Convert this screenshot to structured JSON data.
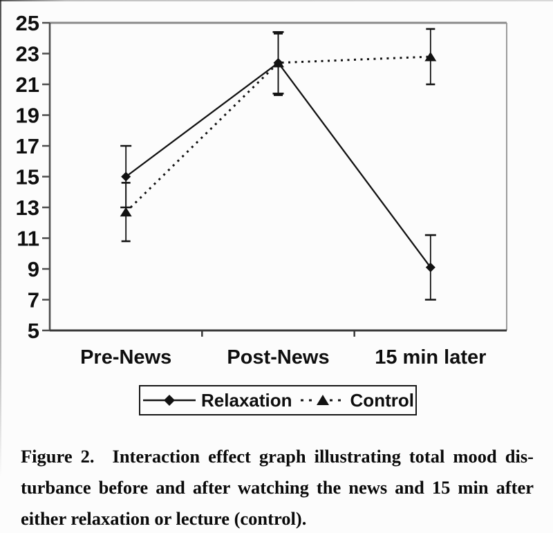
{
  "chart_data": {
    "type": "line",
    "title": "",
    "xlabel": "",
    "ylabel": "",
    "categories": [
      "Pre-News",
      "Post-News",
      "15 min later"
    ],
    "series": [
      {
        "name": "Relaxation",
        "marker": "diamond",
        "line_style": "solid",
        "values": [
          15.0,
          22.4,
          9.1
        ],
        "error_low": [
          13.0,
          20.4,
          7.0
        ],
        "error_high": [
          17.0,
          24.4,
          11.2
        ]
      },
      {
        "name": "Control",
        "marker": "triangle",
        "line_style": "dashed",
        "values": [
          12.7,
          22.4,
          22.8
        ],
        "error_low": [
          10.8,
          20.3,
          21.0
        ],
        "error_high": [
          14.6,
          24.3,
          24.6
        ]
      }
    ],
    "ylim": [
      5,
      25
    ],
    "yticks": [
      5,
      7,
      9,
      11,
      13,
      15,
      17,
      19,
      21,
      23,
      25
    ],
    "grid": false,
    "legend_position": "bottom",
    "color": "#121212"
  },
  "icons": {
    "relaxation_marker_glyph": "♦",
    "control_marker_glyph": "▲"
  },
  "caption": {
    "figure_label": "Figure 2.",
    "lines": [
      "Interaction effect graph illustrating total mood dis-",
      "turbance before and after watching the news and 15 min after",
      "either relaxation or lecture (control)."
    ]
  }
}
